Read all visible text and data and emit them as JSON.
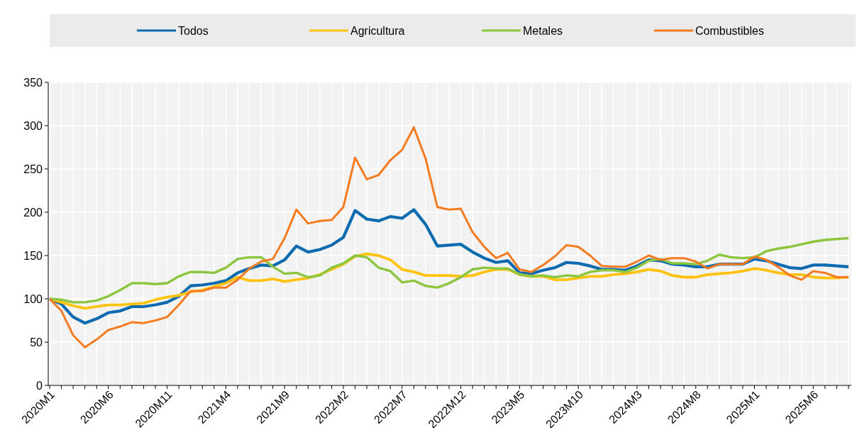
{
  "chart_data": {
    "type": "line",
    "categories": [
      "2020M1",
      null,
      null,
      null,
      null,
      "2020M6",
      null,
      null,
      null,
      null,
      "2020M11",
      null,
      null,
      null,
      null,
      "2021M4",
      null,
      null,
      null,
      null,
      "2021M9",
      null,
      null,
      null,
      null,
      "2022M2",
      null,
      null,
      null,
      null,
      "2022M7",
      null,
      null,
      null,
      null,
      "2022M12",
      null,
      null,
      null,
      null,
      "2023M5",
      null,
      null,
      null,
      null,
      "2023M10",
      null,
      null,
      null,
      null,
      "2024M3",
      null,
      null,
      null,
      null,
      "2024M8",
      null,
      null,
      null,
      null,
      "2025M1",
      null,
      null,
      null,
      null,
      "2025M6",
      null,
      null,
      null
    ],
    "series": [
      {
        "name": "Todos",
        "color": "#0e6bb0",
        "values": [
          100,
          94,
          79,
          72,
          77,
          84,
          86,
          91,
          91,
          93,
          96,
          103,
          115,
          116,
          118,
          121,
          130,
          135,
          139,
          138,
          145,
          161,
          154,
          157,
          162,
          171,
          202,
          192,
          190,
          195,
          193,
          203,
          186,
          161,
          162,
          163,
          154,
          147,
          142,
          144,
          130,
          129,
          133,
          136,
          142,
          141,
          138,
          134,
          134,
          133,
          138,
          145,
          144,
          140,
          139,
          137,
          137,
          140,
          140,
          140,
          146,
          144,
          140,
          136,
          135,
          139,
          139,
          138,
          137
        ]
      },
      {
        "name": "Agricultura",
        "color": "#ffc20e",
        "values": [
          100,
          96,
          92,
          89,
          91,
          93,
          93,
          94,
          95,
          99,
          102,
          104,
          108,
          110,
          114,
          118,
          125,
          121,
          121,
          123,
          120,
          122,
          124,
          128,
          134,
          140,
          149,
          152,
          150,
          145,
          134,
          131,
          127,
          127,
          127,
          126,
          127,
          131,
          134,
          134,
          128,
          126,
          126,
          122,
          122,
          124,
          126,
          126,
          128,
          129,
          131,
          134,
          132,
          127,
          125,
          125,
          128,
          129,
          130,
          132,
          135,
          133,
          130,
          128,
          128,
          125,
          124,
          124,
          125
        ]
      },
      {
        "name": "Metales",
        "color": "#8cc63f",
        "values": [
          100,
          99,
          96,
          96,
          98,
          103,
          110,
          118,
          118,
          117,
          118,
          126,
          131,
          131,
          130,
          136,
          146,
          148,
          148,
          137,
          129,
          130,
          125,
          127,
          136,
          141,
          150,
          148,
          136,
          132,
          119,
          121,
          115,
          113,
          118,
          125,
          134,
          136,
          135,
          135,
          128,
          126,
          127,
          125,
          127,
          126,
          131,
          133,
          133,
          131,
          136,
          144,
          146,
          141,
          141,
          140,
          144,
          151,
          148,
          147,
          148,
          155,
          158,
          160,
          163,
          166,
          168,
          169,
          170
        ]
      },
      {
        "name": "Combustibles",
        "color": "#f47b20",
        "values": [
          100,
          86,
          58,
          44,
          53,
          64,
          68,
          73,
          72,
          75,
          79,
          93,
          109,
          109,
          113,
          113,
          122,
          135,
          143,
          146,
          170,
          203,
          187,
          190,
          191,
          206,
          263,
          238,
          243,
          260,
          272,
          298,
          262,
          206,
          203,
          204,
          177,
          160,
          147,
          153,
          134,
          131,
          139,
          149,
          162,
          160,
          150,
          138,
          137,
          137,
          143,
          150,
          145,
          147,
          147,
          143,
          135,
          140,
          140,
          140,
          149,
          145,
          137,
          127,
          122,
          132,
          130,
          125,
          125
        ]
      }
    ],
    "ylim": [
      0,
      350
    ],
    "yticks": [
      0,
      50,
      100,
      150,
      200,
      250,
      300,
      350
    ],
    "grid": true,
    "legend": "top",
    "marker": "none",
    "line_style": "solid"
  }
}
